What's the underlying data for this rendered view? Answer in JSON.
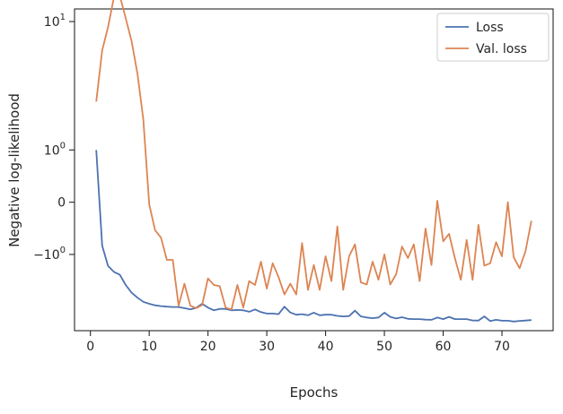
{
  "chart_data": {
    "type": "line",
    "title": "",
    "xlabel": "Epochs",
    "ylabel": "Negative log-likelihood",
    "yscale": "symlog",
    "xlim": [
      -2.7,
      78.7
    ],
    "ylim": [
      -4.5,
      12
    ],
    "xticks": [
      0,
      10,
      20,
      30,
      40,
      50,
      60,
      70
    ],
    "xtick_labels": [
      "0",
      "10",
      "20",
      "30",
      "40",
      "50",
      "60",
      "70"
    ],
    "yticks": [
      -1,
      0,
      1,
      10
    ],
    "ytick_labels": [
      "−1",
      "0",
      "1",
      "10"
    ],
    "legend_position": "top-right",
    "grid": false,
    "x": [
      1,
      2,
      3,
      4,
      5,
      6,
      7,
      8,
      9,
      10,
      11,
      12,
      13,
      14,
      15,
      16,
      17,
      18,
      19,
      20,
      21,
      22,
      23,
      24,
      25,
      26,
      27,
      28,
      29,
      30,
      31,
      32,
      33,
      34,
      35,
      36,
      37,
      38,
      39,
      40,
      41,
      42,
      43,
      44,
      45,
      46,
      47,
      48,
      49,
      50,
      51,
      52,
      53,
      54,
      55,
      56,
      57,
      58,
      59,
      60,
      61,
      62,
      63,
      64,
      65,
      66,
      67,
      68,
      69,
      70,
      71,
      72,
      73,
      74,
      75
    ],
    "series": [
      {
        "name": "Loss",
        "color": "#4c72b0",
        "values": [
          1.0,
          -0.78,
          -1.33,
          -1.52,
          -1.62,
          -2.0,
          -2.32,
          -2.55,
          -2.75,
          -2.85,
          -2.93,
          -2.97,
          -3.0,
          -3.02,
          -3.02,
          -3.08,
          -3.15,
          -3.06,
          -2.85,
          -3.05,
          -3.2,
          -3.12,
          -3.12,
          -3.2,
          -3.18,
          -3.2,
          -3.28,
          -3.15,
          -3.3,
          -3.38,
          -3.38,
          -3.42,
          -3.0,
          -3.32,
          -3.45,
          -3.42,
          -3.48,
          -3.33,
          -3.48,
          -3.45,
          -3.45,
          -3.52,
          -3.55,
          -3.53,
          -3.22,
          -3.55,
          -3.62,
          -3.66,
          -3.62,
          -3.33,
          -3.58,
          -3.68,
          -3.6,
          -3.7,
          -3.72,
          -3.72,
          -3.75,
          -3.76,
          -3.62,
          -3.72,
          -3.58,
          -3.72,
          -3.72,
          -3.72,
          -3.8,
          -3.81,
          -3.55,
          -3.84,
          -3.76,
          -3.82,
          -3.82,
          -3.87,
          -3.83,
          -3.81,
          -3.78
        ]
      },
      {
        "name": "Val. loss",
        "color": "#dd8452",
        "values": [
          2.8,
          6.5,
          9.2,
          14.2,
          14.5,
          10.5,
          7.5,
          4.5,
          2.0,
          -0.03,
          -0.45,
          -0.6,
          -1.15,
          -1.15,
          -2.95,
          -1.95,
          -2.95,
          -3.08,
          -2.92,
          -1.75,
          -2.0,
          -2.05,
          -3.05,
          -3.15,
          -2.0,
          -3.05,
          -1.85,
          -2.0,
          -1.2,
          -2.15,
          -1.25,
          -1.7,
          -2.4,
          -1.95,
          -2.4,
          -0.72,
          -2.2,
          -1.3,
          -2.2,
          -1.05,
          -1.85,
          -0.38,
          -2.2,
          -1.05,
          -0.75,
          -1.9,
          -1.98,
          -1.2,
          -1.8,
          -1.0,
          -1.98,
          -1.6,
          -0.8,
          -1.1,
          -0.75,
          -1.85,
          -0.42,
          -1.3,
          0.02,
          -0.68,
          -0.52,
          -1.1,
          -1.8,
          -0.65,
          -1.8,
          -0.35,
          -1.32,
          -1.25,
          -0.7,
          -1.05,
          0.0,
          -1.08,
          -1.4,
          -0.92,
          -0.28
        ]
      }
    ]
  }
}
